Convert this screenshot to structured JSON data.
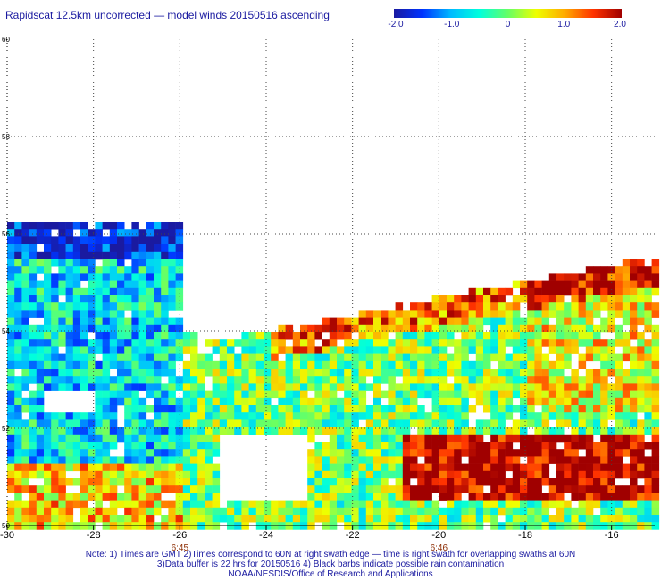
{
  "title": "Rapidscat 12.5km uncorrected — model winds 20150516 ascending",
  "colorbar": {
    "min": -2.0,
    "max": 2.0,
    "labels": [
      "-2.0",
      "-1.0",
      "0",
      "1.0",
      "2.0"
    ],
    "colors": [
      "#1a1aa0",
      "#0033ff",
      "#00bbff",
      "#00ffdd",
      "#66ff66",
      "#eeff00",
      "#ffaa00",
      "#ff3300",
      "#a00000"
    ]
  },
  "map": {
    "lon_range": [
      -30,
      -15
    ],
    "lat_range": [
      50,
      60
    ],
    "lon_ticks": [
      "-30",
      "-28",
      "-26",
      "-24",
      "-22",
      "-20",
      "-18",
      "-16"
    ],
    "lat_ticks": [
      "50",
      "52",
      "54",
      "56",
      "58",
      "60"
    ],
    "time_labels": [
      {
        "text": "6:45",
        "lon": -26
      },
      {
        "text": "6:46",
        "lon": -20
      }
    ],
    "time_color": "#8b2a00",
    "grid": "dotted"
  },
  "notes": [
    "Note: 1) Times are GMT 2)Times correspond to 60N at right swath edge — time is right swath for overlapping swaths at 60N",
    "3)Data buffer is 22 hrs for 20150516 4) Black barbs indicate possible rain contamination",
    "NOAA/NESDIS/Office of Research and Applications"
  ]
}
